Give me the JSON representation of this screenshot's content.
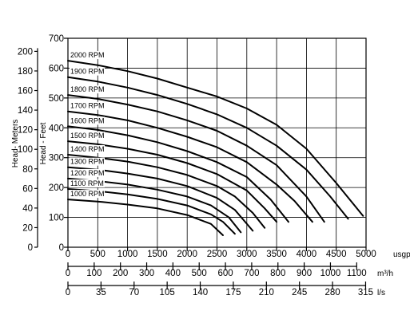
{
  "chart_data": {
    "type": "line",
    "grid": true,
    "x_axes": [
      {
        "unit": "usgpm",
        "ticks": [
          "0",
          "500",
          "1000",
          "1500",
          "2000",
          "2500",
          "3000",
          "3500",
          "4000",
          "4500",
          "5000"
        ]
      },
      {
        "unit": "m³/h",
        "ticks": [
          "0",
          "100",
          "200",
          "300",
          "400",
          "500",
          "600",
          "700",
          "800",
          "900",
          "1000",
          "1100"
        ]
      },
      {
        "unit": "l/s",
        "ticks": [
          "0",
          "35",
          "70",
          "105",
          "140",
          "175",
          "210",
          "245",
          "280",
          "315"
        ]
      }
    ],
    "y_axes": [
      {
        "label": "Head - Feet",
        "ticks": [
          "0",
          "100",
          "200",
          "300",
          "400",
          "500",
          "600",
          "700"
        ]
      },
      {
        "label": "Head- Meters",
        "ticks": [
          "0",
          "20",
          "40",
          "60",
          "80",
          "100",
          "120",
          "140",
          "160",
          "180",
          "200"
        ]
      }
    ],
    "xlim": [
      0,
      5000
    ],
    "ylim": [
      0,
      700
    ],
    "series": [
      {
        "name": "2000 RPM",
        "x": [
          0,
          500,
          1000,
          1500,
          2000,
          2500,
          3000,
          3500,
          4000,
          4500,
          4950
        ],
        "y": [
          625,
          610,
          590,
          565,
          535,
          505,
          465,
          410,
          330,
          215,
          105
        ]
      },
      {
        "name": "1900 RPM",
        "x": [
          0,
          500,
          1000,
          1500,
          2000,
          2500,
          3000,
          3500,
          4000,
          4400,
          4700
        ],
        "y": [
          570,
          555,
          535,
          510,
          480,
          445,
          400,
          340,
          260,
          170,
          95
        ]
      },
      {
        "name": "1800 RPM",
        "x": [
          0,
          500,
          1000,
          1500,
          2000,
          2500,
          3000,
          3500,
          4000,
          4300
        ],
        "y": [
          510,
          497,
          478,
          455,
          425,
          390,
          340,
          275,
          170,
          85
        ]
      },
      {
        "name": "1700 RPM",
        "x": [
          0,
          500,
          1000,
          1500,
          2000,
          2500,
          3000,
          3500,
          3800,
          4100
        ],
        "y": [
          455,
          443,
          425,
          400,
          370,
          335,
          285,
          210,
          155,
          85
        ]
      },
      {
        "name": "1600 RPM",
        "x": [
          0,
          500,
          1000,
          1500,
          2000,
          2500,
          3000,
          3400,
          3700
        ],
        "y": [
          405,
          393,
          375,
          352,
          322,
          285,
          235,
          160,
          85
        ]
      },
      {
        "name": "1500 RPM",
        "x": [
          0,
          500,
          1000,
          1500,
          2000,
          2500,
          3000,
          3300,
          3500
        ],
        "y": [
          355,
          345,
          330,
          310,
          282,
          245,
          190,
          130,
          85
        ]
      },
      {
        "name": "1400 RPM",
        "x": [
          0,
          500,
          1000,
          1500,
          2000,
          2500,
          2800,
          3100,
          3300
        ],
        "y": [
          310,
          300,
          287,
          268,
          242,
          205,
          170,
          115,
          65
        ]
      },
      {
        "name": "1300 RPM",
        "x": [
          0,
          500,
          1000,
          1500,
          2000,
          2500,
          2800,
          3100
        ],
        "y": [
          268,
          260,
          247,
          230,
          205,
          165,
          125,
          55
        ]
      },
      {
        "name": "1200 RPM",
        "x": [
          0,
          500,
          1000,
          1500,
          2000,
          2400,
          2700,
          2900
        ],
        "y": [
          230,
          222,
          210,
          193,
          170,
          140,
          100,
          50
        ]
      },
      {
        "name": "1100 RPM",
        "x": [
          0,
          500,
          1000,
          1500,
          2000,
          2400,
          2600,
          2800
        ],
        "y": [
          195,
          188,
          177,
          162,
          140,
          110,
          85,
          45
        ]
      },
      {
        "name": "1000 RPM",
        "x": [
          0,
          500,
          1000,
          1500,
          2000,
          2400,
          2600
        ],
        "y": [
          160,
          153,
          143,
          130,
          108,
          78,
          40
        ]
      }
    ]
  }
}
